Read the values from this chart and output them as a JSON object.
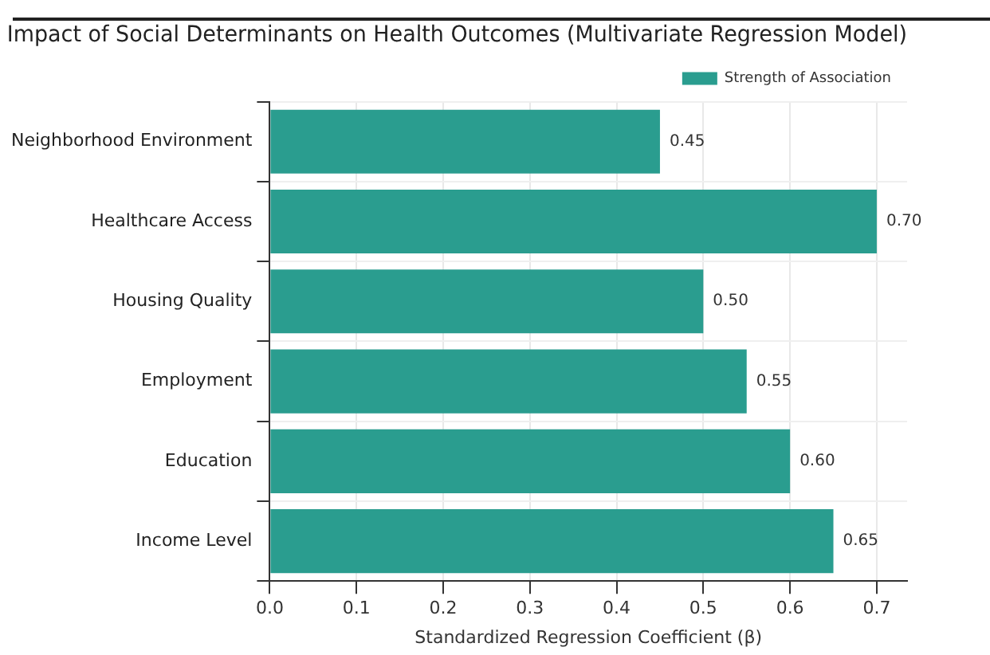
{
  "chart_data": {
    "type": "bar",
    "orientation": "horizontal",
    "title": "Impact of Social Determinants on Health Outcomes (Multivariate Regression Model)",
    "xlabel": "Standardized Regression Coefficient (β)",
    "categories": [
      "Neighborhood Environment",
      "Healthcare Access",
      "Housing Quality",
      "Employment",
      "Education",
      "Income Level"
    ],
    "series": [
      {
        "name": "Strength of Association",
        "color": "#2a9d8f",
        "values": [
          0.45,
          0.7,
          0.5,
          0.55,
          0.6,
          0.65
        ],
        "value_labels": [
          "0.45",
          "0.70",
          "0.50",
          "0.55",
          "0.60",
          "0.65"
        ]
      }
    ],
    "xlim": [
      0,
      0.735
    ],
    "xticks": [
      {
        "value": 0,
        "label": "0.0"
      },
      {
        "value": 0.1,
        "label": "0.1"
      },
      {
        "value": 0.2,
        "label": "0.2"
      },
      {
        "value": 0.3,
        "label": "0.3"
      },
      {
        "value": 0.4,
        "label": "0.4"
      },
      {
        "value": 0.5,
        "label": "0.5"
      },
      {
        "value": 0.6,
        "label": "0.6"
      },
      {
        "value": 0.7,
        "label": "0.7"
      }
    ],
    "grid": true,
    "legend": "top right"
  }
}
